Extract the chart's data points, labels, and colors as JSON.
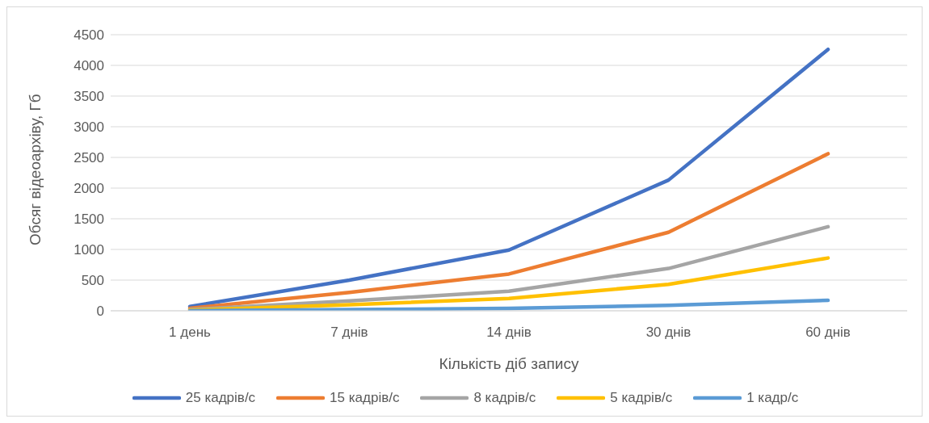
{
  "chart_data": {
    "type": "line",
    "xlabel": "Кількість діб запису",
    "ylabel": "Обсяг відеоархіву, Гб",
    "categories": [
      "1 день",
      "7 днів",
      "14 днів",
      "30 днів",
      "60 днів"
    ],
    "series": [
      {
        "name": "25 кадрів/с",
        "color": "#4472c4",
        "values": [
          70,
          500,
          990,
          2130,
          4260
        ]
      },
      {
        "name": "15 кадрів/с",
        "color": "#ed7d31",
        "values": [
          40,
          300,
          600,
          1280,
          2560
        ]
      },
      {
        "name": "8 кадрів/с",
        "color": "#a5a5a5",
        "values": [
          20,
          160,
          320,
          690,
          1370
        ]
      },
      {
        "name": "5 кадрів/с",
        "color": "#ffc000",
        "values": [
          10,
          100,
          200,
          430,
          860
        ]
      },
      {
        "name": "1 кадр/с",
        "color": "#5b9bd5",
        "values": [
          0,
          20,
          40,
          90,
          170
        ]
      }
    ],
    "ylim": [
      0,
      4500
    ],
    "yticks": [
      0,
      500,
      1000,
      1500,
      2000,
      2500,
      3000,
      3500,
      4000,
      4500
    ],
    "grid": "y",
    "legend": "bottom",
    "marker": "none",
    "line_style": "solid"
  }
}
